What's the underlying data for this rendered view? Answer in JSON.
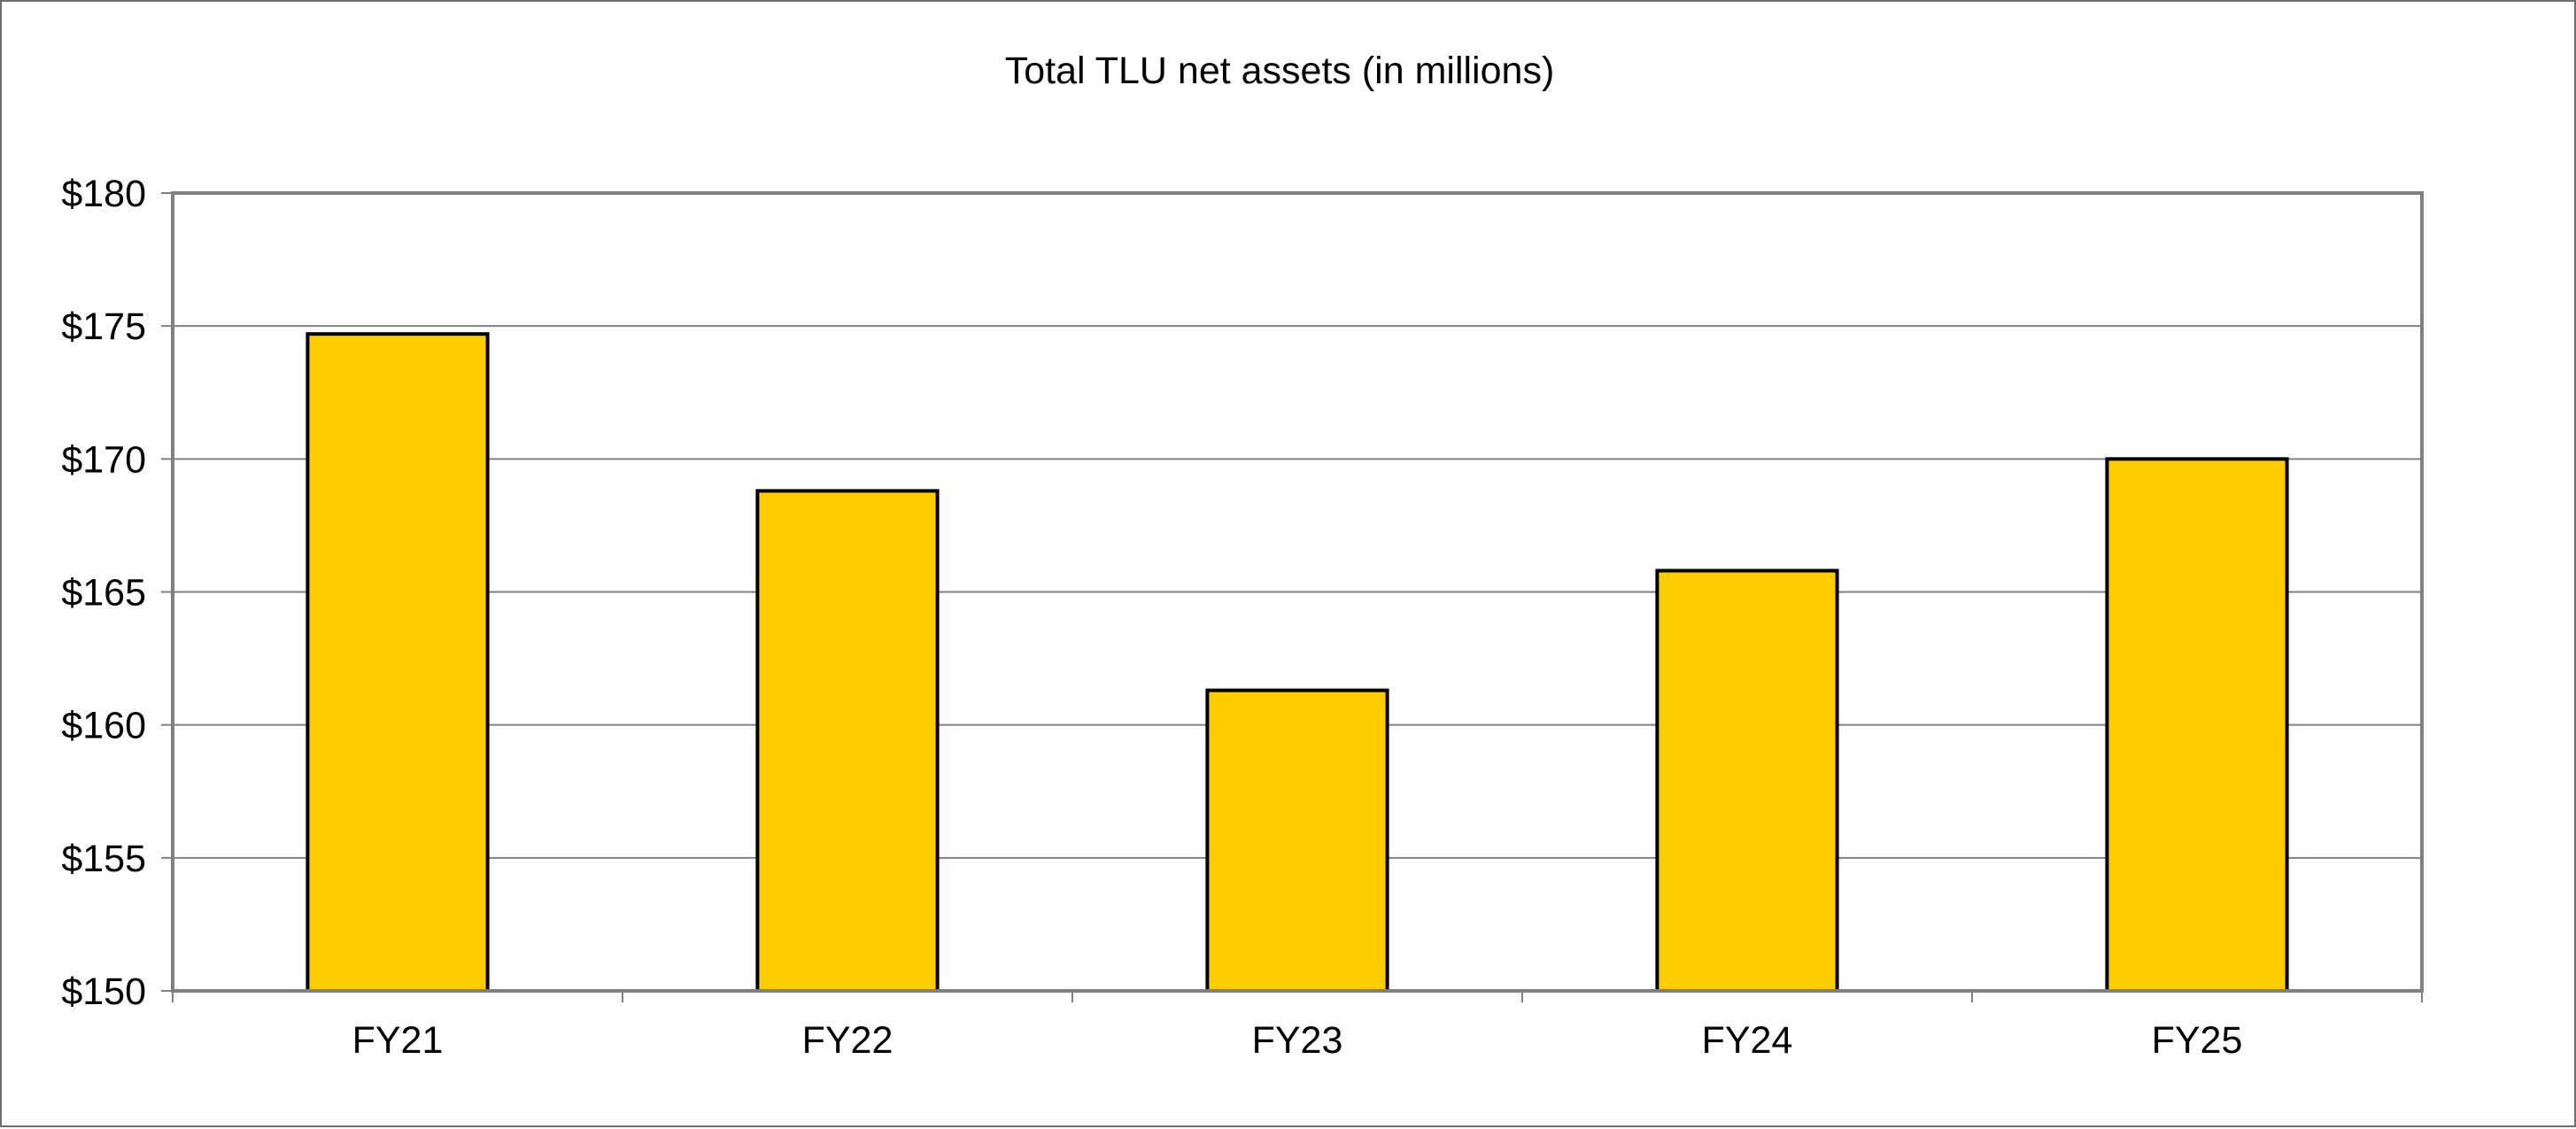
{
  "chart_data": {
    "type": "bar",
    "title": "Total TLU net assets (in millions)",
    "xlabel": "",
    "ylabel": "",
    "categories": [
      "FY21",
      "FY22",
      "FY23",
      "FY24",
      "FY25"
    ],
    "values": [
      174.7,
      168.8,
      161.3,
      165.8,
      170.0
    ],
    "ylim": [
      150,
      180
    ],
    "yticks": [
      150,
      155,
      160,
      165,
      170,
      175,
      180
    ],
    "ytick_labels": [
      "$150",
      "$155",
      "$160",
      "$165",
      "$170",
      "$175",
      "$180"
    ],
    "grid": true,
    "legend": "none",
    "colors": {
      "bar_fill": "#FFCC00",
      "bar_stroke": "#000000",
      "grid": "#808080",
      "axis": "#808080",
      "frame": "#6e6e6e"
    }
  }
}
